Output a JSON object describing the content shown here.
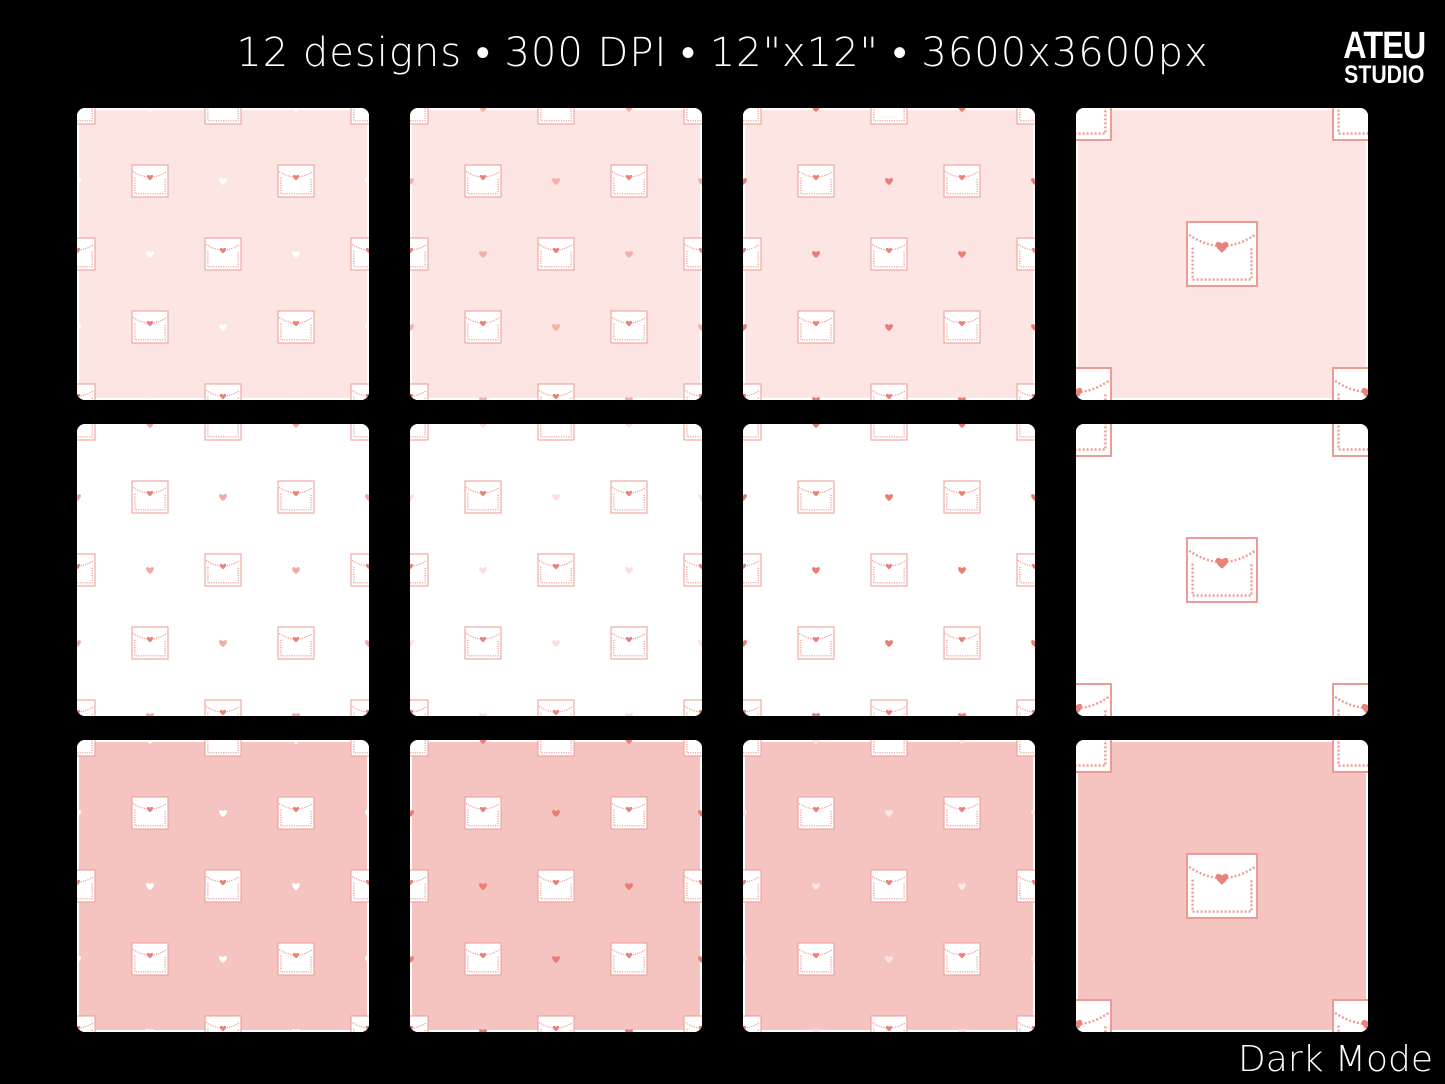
{
  "header": {
    "title": "12 designs • 300 DPI • 12\"x12\" • 3600x3600px"
  },
  "logo": {
    "line1": "ATEU",
    "line2": "STUDIO"
  },
  "footer": {
    "mode_label": "Dark Mode"
  },
  "colors": {
    "accent": "#e8837c",
    "outline": "#ec9a92"
  },
  "tiles": [
    {
      "style": "pattern",
      "bg": "#fde5e4",
      "heart": "#ffffff"
    },
    {
      "style": "pattern",
      "bg": "#fde5e4",
      "heart": "#f4b0aa"
    },
    {
      "style": "pattern",
      "bg": "#fde5e4",
      "heart": "#ea7d74"
    },
    {
      "style": "single",
      "bg": "#fde5e4",
      "heart": "#ea7d74"
    },
    {
      "style": "pattern",
      "bg": "#ffffff",
      "heart": "#f4aaa4"
    },
    {
      "style": "pattern",
      "bg": "#ffffff",
      "heart": "#fde0de"
    },
    {
      "style": "pattern",
      "bg": "#ffffff",
      "heart": "#ea7d74"
    },
    {
      "style": "single",
      "bg": "#ffffff",
      "heart": "#ea7d74"
    },
    {
      "style": "pattern",
      "bg": "#f5c4c1",
      "heart": "#ffffff"
    },
    {
      "style": "pattern",
      "bg": "#f5c4c1",
      "heart": "#ea7d74"
    },
    {
      "style": "pattern",
      "bg": "#f5c4c1",
      "heart": "#fde5e4"
    },
    {
      "style": "single",
      "bg": "#f5c4c1",
      "heart": "#ea7d74"
    }
  ]
}
